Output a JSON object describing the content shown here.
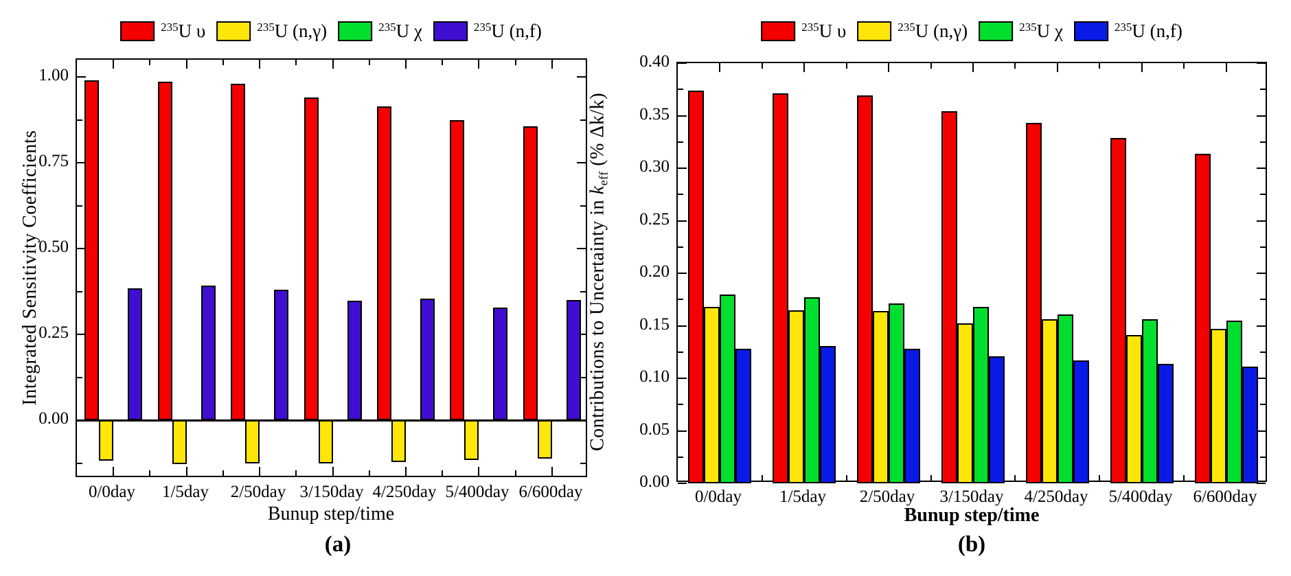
{
  "figure": {
    "background_color": "#ffffff",
    "caption_a": "(a)",
    "caption_b": "(b)"
  },
  "chart_data": [
    {
      "panel": "a",
      "type": "bar",
      "title": "",
      "caption": "(a)",
      "xlabel": "Bunup step/time",
      "ylabel": "Integrated Sensitivity Coefficients",
      "categories": [
        "0/0day",
        "1/5day",
        "2/50day",
        "3/150day",
        "4/250day",
        "5/400day",
        "6/600day"
      ],
      "ylim": [
        -0.17,
        1.05
      ],
      "ytick_labels": [
        "1.00",
        "0.75",
        "0.50",
        "0.25",
        "0.00"
      ],
      "ytick_values": [
        1.0,
        0.75,
        0.5,
        0.25,
        0.0
      ],
      "gridlines": false,
      "legend_position": "top",
      "zero_line": true,
      "series": [
        {
          "name": "235U υ",
          "name_sup": "235",
          "name_text": "U υ",
          "color": "#F40000",
          "values": [
            0.99,
            0.985,
            0.979,
            0.94,
            0.913,
            0.874,
            0.856
          ]
        },
        {
          "name": "235U (n,γ)",
          "name_sup": "235",
          "name_text": "U (n,γ)",
          "color": "#FFE60A",
          "values": [
            -0.118,
            -0.127,
            -0.126,
            -0.125,
            -0.121,
            -0.116,
            -0.112
          ]
        },
        {
          "name": "235U χ",
          "name_sup": "235",
          "name_text": "U χ",
          "color": "#00DF2E",
          "values": [
            0,
            0,
            0,
            0,
            0,
            0,
            0
          ]
        },
        {
          "name": "235U (n,f)",
          "name_sup": "235",
          "name_text": "U (n,f)",
          "color": "#3F0ED1",
          "values": [
            0.383,
            0.392,
            0.38,
            0.347,
            0.353,
            0.328,
            0.35
          ]
        }
      ]
    },
    {
      "panel": "b",
      "type": "bar",
      "title": "",
      "caption": "(b)",
      "xlabel": "Bunup step/time",
      "ylabel": "Contributions to Uncertainty in keff (% Δk/k)",
      "ylabel_prefix": "Contributions to Uncertainty in ",
      "ylabel_k": "k",
      "ylabel_k_sub": "eff",
      "ylabel_suffix": " (% Δk/k)",
      "categories": [
        "0/0day",
        "1/5day",
        "2/50day",
        "3/150day",
        "4/250day",
        "5/400day",
        "6/600day"
      ],
      "ylim": [
        0,
        0.4
      ],
      "ytick_labels": [
        "0.40",
        "0.35",
        "0.30",
        "0.25",
        "0.20",
        "0.15",
        "0.10",
        "0.05",
        "0.00"
      ],
      "ytick_values": [
        0.4,
        0.35,
        0.3,
        0.25,
        0.2,
        0.15,
        0.1,
        0.05,
        0.0
      ],
      "gridlines": false,
      "legend_position": "top",
      "zero_line": false,
      "series": [
        {
          "name": "235U υ",
          "name_sup": "235",
          "name_text": "U υ",
          "color": "#F40000",
          "values": [
            0.374,
            0.371,
            0.369,
            0.354,
            0.343,
            0.329,
            0.314
          ]
        },
        {
          "name": "235U (n,γ)",
          "name_sup": "235",
          "name_text": "U (n,γ)",
          "color": "#FFE60A",
          "values": [
            0.168,
            0.165,
            0.164,
            0.152,
            0.156,
            0.141,
            0.147
          ]
        },
        {
          "name": "235U χ",
          "name_sup": "235",
          "name_text": "U χ",
          "color": "#00DF2E",
          "values": [
            0.18,
            0.177,
            0.171,
            0.168,
            0.161,
            0.156,
            0.155
          ]
        },
        {
          "name": "235U (n,f)",
          "name_sup": "235",
          "name_text": "U (n,f)",
          "color": "#0A1AE6",
          "values": [
            0.128,
            0.131,
            0.128,
            0.121,
            0.117,
            0.114,
            0.111
          ]
        }
      ]
    }
  ]
}
